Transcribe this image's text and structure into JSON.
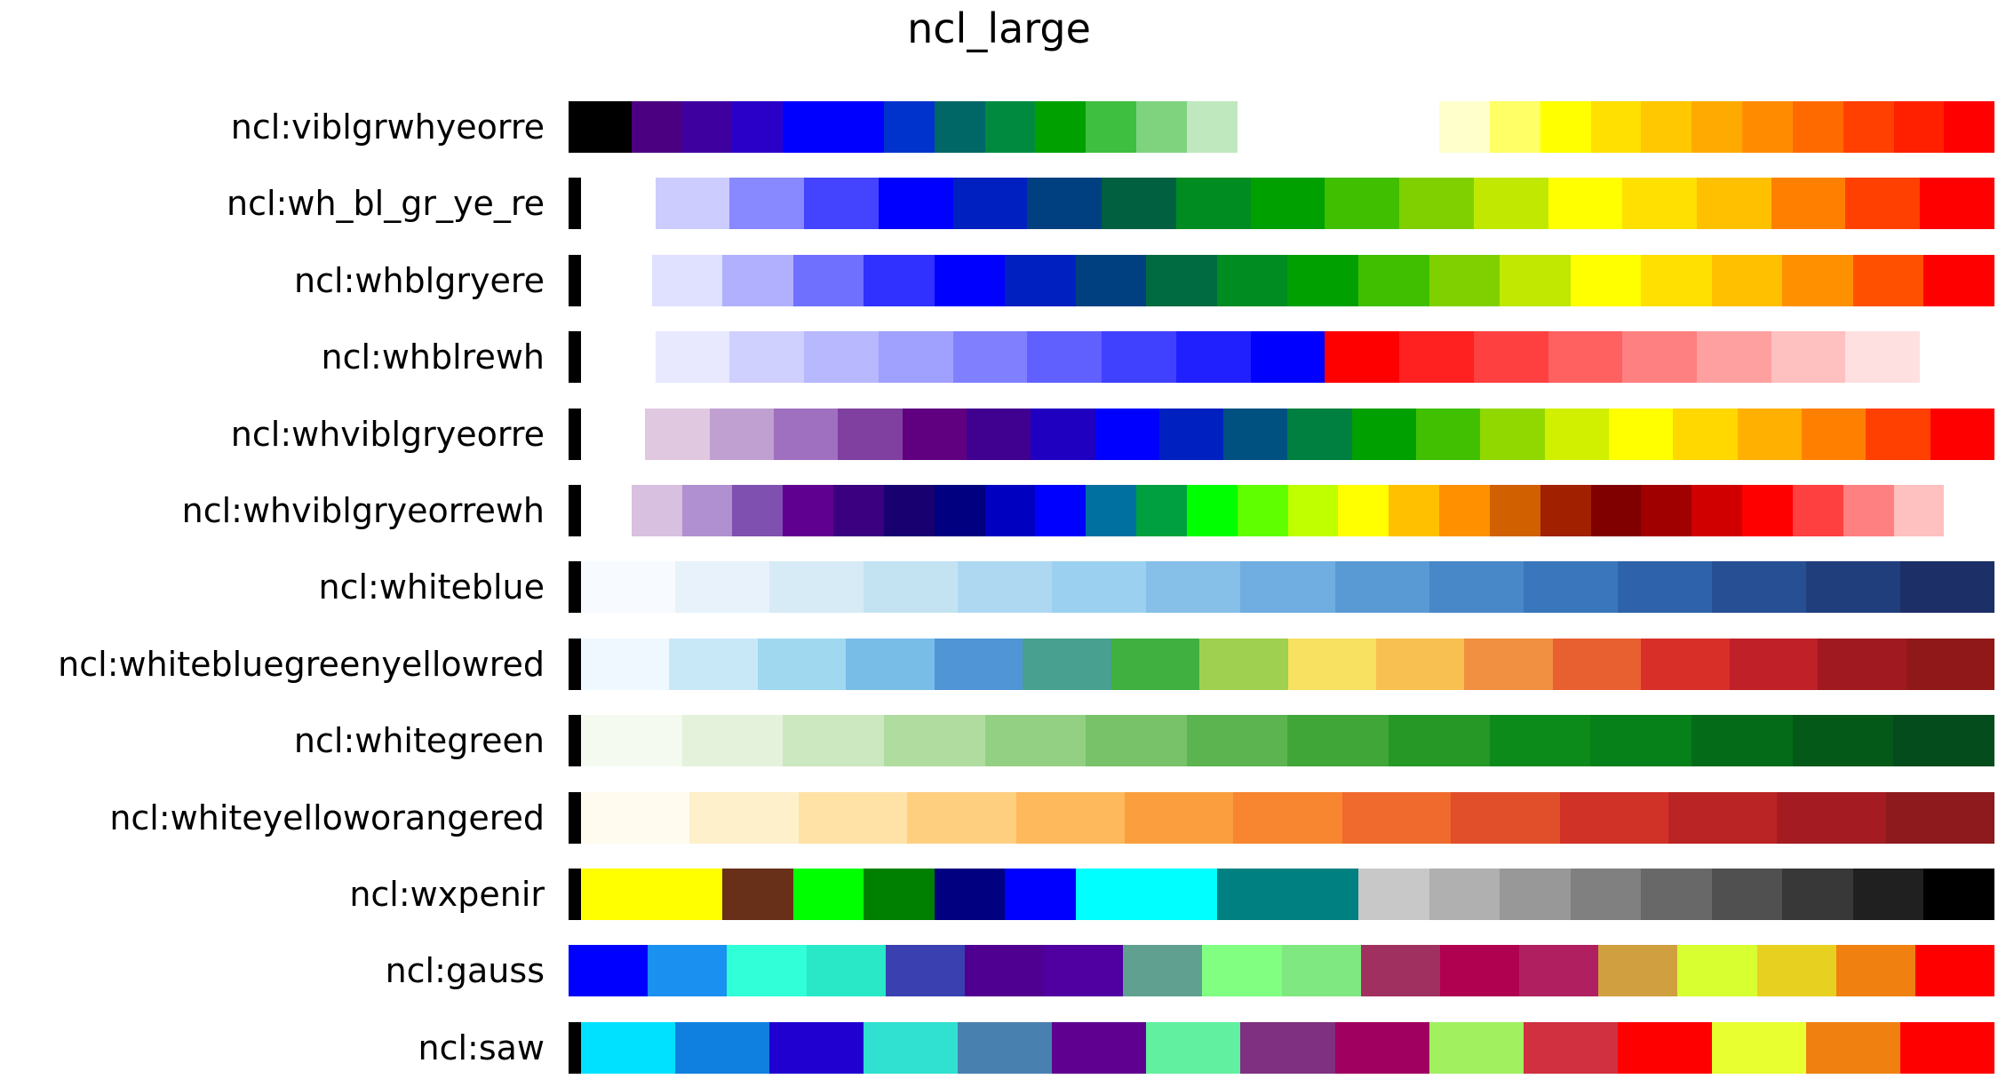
{
  "figure": {
    "title": "ncl_large"
  },
  "colormaps": [
    {
      "name": "ncl:viblgrwhyeorre",
      "stops": [
        "#000000",
        "#000000",
        "#4b0082",
        "#3f00a0",
        "#2a00c8",
        "#0000ff",
        "#0000ff",
        "#0033cc",
        "#006666",
        "#008a40",
        "#00a000",
        "#3fbf3f",
        "#7fd37f",
        "#bfe8bf",
        "#ffffff",
        "#ffffff",
        "#ffffff",
        "#ffffff",
        "#ffffcc",
        "#ffff66",
        "#ffff00",
        "#ffe000",
        "#ffc800",
        "#ffaa00",
        "#ff8c00",
        "#ff6a00",
        "#ff4000",
        "#ff2000",
        "#ff0000"
      ]
    },
    {
      "name": "ncl:wh_bl_gr_ye_re",
      "stops": [
        "#000000",
        "#ffffff",
        "#ccccff",
        "#8888ff",
        "#4444ff",
        "#0000ff",
        "#0020c0",
        "#004080",
        "#006040",
        "#008c20",
        "#00a000",
        "#40bf00",
        "#80d000",
        "#c0e800",
        "#ffff00",
        "#ffe000",
        "#ffc000",
        "#ff8000",
        "#ff4000",
        "#ff0000"
      ]
    },
    {
      "name": "ncl:whblgryere",
      "stops": [
        "#000000",
        "#ffffff",
        "#e0e0ff",
        "#b0b0ff",
        "#7070ff",
        "#3030ff",
        "#0000ff",
        "#0020c0",
        "#004080",
        "#006a40",
        "#008c20",
        "#00a000",
        "#40bf00",
        "#80d000",
        "#c0e800",
        "#ffff00",
        "#ffe000",
        "#ffc000",
        "#ff9000",
        "#ff5000",
        "#ff0000"
      ]
    },
    {
      "name": "ncl:whblrewh",
      "stops": [
        "#000000",
        "#ffffff",
        "#e8e8ff",
        "#d0d0ff",
        "#b8b8ff",
        "#a0a0ff",
        "#8080ff",
        "#6060ff",
        "#4040ff",
        "#2020ff",
        "#0000ff",
        "#ff0000",
        "#ff2020",
        "#ff4040",
        "#ff6060",
        "#ff8080",
        "#ffa0a0",
        "#ffc0c0",
        "#ffe0e0",
        "#ffffff"
      ]
    },
    {
      "name": "ncl:whviblgryeorre",
      "stops": [
        "#000000",
        "#ffffff",
        "#e0c8e0",
        "#c0a0d0",
        "#a070c0",
        "#8040a0",
        "#600080",
        "#400090",
        "#2000c0",
        "#0000ff",
        "#0020c0",
        "#005080",
        "#008040",
        "#00a000",
        "#40c000",
        "#90d800",
        "#d0f000",
        "#ffff00",
        "#ffd800",
        "#ffb000",
        "#ff8000",
        "#ff4000",
        "#ff0000"
      ]
    },
    {
      "name": "ncl:whviblgryeorrewh",
      "stops": [
        "#000000",
        "#ffffff",
        "#d8c0e0",
        "#b090d0",
        "#8050b0",
        "#600090",
        "#3a0080",
        "#180070",
        "#000080",
        "#0000c0",
        "#0000ff",
        "#0070a0",
        "#00a040",
        "#00ff00",
        "#60ff00",
        "#c0ff00",
        "#ffff00",
        "#ffc000",
        "#ff9000",
        "#d06000",
        "#a02000",
        "#800000",
        "#a00000",
        "#d00000",
        "#ff0000",
        "#ff4040",
        "#ff8080",
        "#ffc0c0",
        "#ffffff"
      ]
    },
    {
      "name": "ncl:whiteblue",
      "stops": [
        "#000000",
        "#f7fbff",
        "#e8f2fb",
        "#d6ebf6",
        "#c3e3f3",
        "#aed8f2",
        "#9cd0f0",
        "#86c0e8",
        "#70ade0",
        "#5a9ad4",
        "#4888c8",
        "#3a76bc",
        "#2e62aa",
        "#264f94",
        "#203e7c",
        "#1c2f66"
      ]
    },
    {
      "name": "ncl:whitebluegreenyellowred",
      "stops": [
        "#000000",
        "#f0f8ff",
        "#c8e8f8",
        "#a0d8f0",
        "#78bce8",
        "#5096d6",
        "#48a090",
        "#40b040",
        "#a0d050",
        "#f8e060",
        "#f8c050",
        "#f09040",
        "#e86030",
        "#d83028",
        "#c02028",
        "#a01820",
        "#901818"
      ]
    },
    {
      "name": "ncl:whitegreen",
      "stops": [
        "#000000",
        "#f4faf0",
        "#e4f2dc",
        "#cce8c0",
        "#b0dca0",
        "#94d084",
        "#78c26a",
        "#5cb450",
        "#40a638",
        "#269826",
        "#0c8a1a",
        "#068018",
        "#046c18",
        "#045818",
        "#044c1c"
      ]
    },
    {
      "name": "ncl:whiteyelloworangered",
      "stops": [
        "#000000",
        "#fffbef",
        "#fff0cc",
        "#ffe2a6",
        "#ffcf80",
        "#fdb95c",
        "#fb9f3e",
        "#f88530",
        "#ef6a2c",
        "#e14e2a",
        "#d13228",
        "#bb2424",
        "#a41c22",
        "#8e1a1e"
      ]
    },
    {
      "name": "ncl:wxpenir",
      "stops": [
        "#000000",
        "#ffff00",
        "#ffff00",
        "#683018",
        "#00ff00",
        "#008000",
        "#000080",
        "#0000ff",
        "#00ffff",
        "#00ffff",
        "#008080",
        "#008080",
        "#c8c8c8",
        "#b0b0b0",
        "#989898",
        "#808080",
        "#686868",
        "#505050",
        "#383838",
        "#202020",
        "#000000"
      ]
    },
    {
      "name": "ncl:gauss",
      "stops": [
        "#0000ff",
        "#1a90f0",
        "#30ffd8",
        "#28e8c8",
        "#3a40b0",
        "#500090",
        "#5000a0",
        "#60a090",
        "#80ff80",
        "#80e880",
        "#a03060",
        "#b00050",
        "#b02060",
        "#d0a040",
        "#d8ff30",
        "#e8d020",
        "#f08010",
        "#ff0000"
      ]
    },
    {
      "name": "ncl:saw",
      "stops": [
        "#000000",
        "#00e0ff",
        "#1080e0",
        "#2000d0",
        "#30e0d0",
        "#4880b0",
        "#600090",
        "#60f0a0",
        "#803080",
        "#a00060",
        "#a0f060",
        "#d03040",
        "#ff0000",
        "#e8ff30",
        "#f08010",
        "#ff0000"
      ]
    }
  ]
}
